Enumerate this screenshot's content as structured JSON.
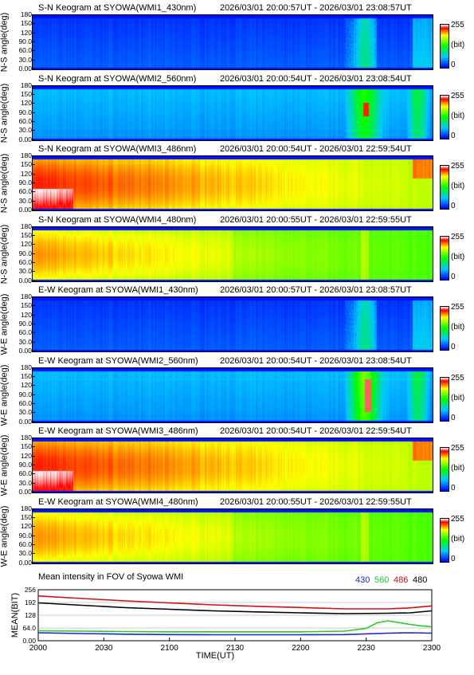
{
  "panels": [
    {
      "id": "sn1",
      "title": "S-N Keogram at SYOWA(WMI1_430nm)",
      "time": "2026/03/01 20:00:57UT - 2026/03/01 23:08:57UT",
      "ylabel": "N-S angle(deg)",
      "theme": "blue"
    },
    {
      "id": "sn2",
      "title": "S-N Keogram at SYOWA(WMI2_560nm)",
      "time": "2026/03/01 20:00:54UT - 2026/03/01 23:08:54UT",
      "ylabel": "N-S angle(deg)",
      "theme": "green-aurora"
    },
    {
      "id": "sn3",
      "title": "S-N Keogram at SYOWA(WMI3_486nm)",
      "time": "2026/03/01 20:00:54UT - 2026/03/01 22:59:54UT",
      "ylabel": "N-S angle(deg)",
      "theme": "red"
    },
    {
      "id": "sn4",
      "title": "S-N Keogram at SYOWA(WMI4_480nm)",
      "time": "2026/03/01 20:00:55UT - 2026/03/01 22:59:55UT",
      "ylabel": "N-S angle(deg)",
      "theme": "orange"
    },
    {
      "id": "ew1",
      "title": "E-W Keogram at SYOWA(WMI1_430nm)",
      "time": "2026/03/01 20:00:57UT - 2026/03/01 23:08:57UT",
      "ylabel": "W-E angle(deg)",
      "theme": "blue"
    },
    {
      "id": "ew2",
      "title": "E-W Keogram at SYOWA(WMI2_560nm)",
      "time": "2026/03/01 20:00:54UT - 2026/03/01 23:08:54UT",
      "ylabel": "W-E angle(deg)",
      "theme": "green-aurora"
    },
    {
      "id": "ew3",
      "title": "E-W Keogram at SYOWA(WMI3_486nm)",
      "time": "2026/03/01 20:00:54UT - 2026/03/01 22:59:54UT",
      "ylabel": "W-E angle(deg)",
      "theme": "red"
    },
    {
      "id": "ew4",
      "title": "E-W Keogram at SYOWA(WMI4_480nm)",
      "time": "2026/03/01 20:00:55UT - 2026/03/01 22:59:55UT",
      "ylabel": "W-E angle(deg)",
      "theme": "orange"
    }
  ],
  "y_ticks": [
    "180",
    "150",
    "120",
    "90.0",
    "60.0",
    "30.0",
    "0.00"
  ],
  "colorbar": {
    "max": "255",
    "unit": "(bit)",
    "min": "0"
  },
  "chart_data": {
    "type": "line",
    "title": "Mean intensity in FOV of Syowa WMI",
    "xlabel": "TIME(UT)",
    "ylabel": "MEAN(BIT)",
    "x_ticks": [
      "2000",
      "2030",
      "2100",
      "2130",
      "2200",
      "2230",
      "2300"
    ],
    "y_ticks": [
      "256",
      "192",
      "128",
      "64.0",
      "0.00"
    ],
    "ylim": [
      0,
      256
    ],
    "xlim_minutes": [
      0,
      180
    ],
    "series": [
      {
        "name": "430",
        "color": "#2222cc",
        "x": [
          0,
          20,
          40,
          60,
          80,
          100,
          120,
          140,
          160,
          170,
          180
        ],
        "y": [
          40,
          36,
          33,
          31,
          30,
          30,
          30,
          31,
          38,
          40,
          38
        ]
      },
      {
        "name": "560",
        "color": "#22cc22",
        "x": [
          0,
          20,
          40,
          60,
          80,
          100,
          120,
          140,
          150,
          155,
          160,
          170,
          175,
          180
        ],
        "y": [
          50,
          48,
          46,
          45,
          45,
          45,
          45,
          48,
          62,
          90,
          100,
          82,
          75,
          70
        ]
      },
      {
        "name": "486",
        "color": "#cc1111",
        "x": [
          0,
          20,
          40,
          60,
          80,
          100,
          120,
          140,
          160,
          170,
          180
        ],
        "y": [
          225,
          212,
          200,
          190,
          180,
          173,
          167,
          160,
          160,
          165,
          175
        ]
      },
      {
        "name": "480",
        "color": "#000000",
        "x": [
          0,
          20,
          40,
          60,
          80,
          100,
          120,
          140,
          160,
          170,
          180
        ],
        "y": [
          190,
          178,
          166,
          158,
          150,
          145,
          140,
          136,
          138,
          140,
          150
        ]
      }
    ]
  }
}
